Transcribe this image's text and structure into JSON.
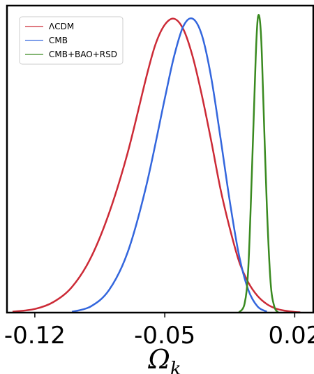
{
  "chart_data": {
    "type": "line",
    "xlabel": "Ω",
    "xlabel_subscript": "k",
    "ylabel": "",
    "xlim": [
      -0.135,
      0.03
    ],
    "ylim": [
      0,
      1.0
    ],
    "xticks": [
      -0.12,
      -0.05,
      0.02
    ],
    "xtick_labels": [
      "-0.12",
      "-0.05",
      "0.02"
    ],
    "grid": false,
    "legend_position": "top-left",
    "series": [
      {
        "name": "ΛCDM",
        "color": "#cc2a36",
        "x": [
          -0.132,
          -0.12,
          -0.11,
          -0.1,
          -0.09,
          -0.08,
          -0.07,
          -0.06,
          -0.055,
          -0.05,
          -0.045,
          -0.04,
          -0.035,
          -0.03,
          -0.025,
          -0.02,
          -0.015,
          -0.01,
          -0.005,
          0.0,
          0.005,
          0.01,
          0.015,
          0.02,
          0.023
        ],
        "y": [
          0.003,
          0.012,
          0.035,
          0.085,
          0.18,
          0.33,
          0.53,
          0.78,
          0.89,
          0.955,
          0.975,
          0.94,
          0.85,
          0.72,
          0.57,
          0.41,
          0.28,
          0.17,
          0.1,
          0.055,
          0.028,
          0.013,
          0.006,
          0.002,
          0.001
        ]
      },
      {
        "name": "CMB",
        "color": "#3366dd",
        "x": [
          -0.1,
          -0.09,
          -0.08,
          -0.07,
          -0.06,
          -0.05,
          -0.045,
          -0.04,
          -0.035,
          -0.03,
          -0.025,
          -0.02,
          -0.015,
          -0.01,
          -0.005,
          0.0,
          0.005
        ],
        "y": [
          0.003,
          0.02,
          0.075,
          0.2,
          0.42,
          0.71,
          0.85,
          0.95,
          0.975,
          0.92,
          0.78,
          0.58,
          0.37,
          0.19,
          0.075,
          0.02,
          0.003
        ]
      },
      {
        "name": "CMB+BAO+RSD",
        "color": "#3a8a20",
        "x": [
          -0.01,
          -0.007,
          -0.005,
          -0.003,
          -0.001,
          0.0,
          0.001,
          0.002,
          0.003,
          0.005,
          0.007,
          0.009,
          0.011
        ],
        "y": [
          0.001,
          0.03,
          0.15,
          0.48,
          0.85,
          0.97,
          0.98,
          0.9,
          0.72,
          0.35,
          0.1,
          0.02,
          0.001
        ]
      }
    ]
  }
}
